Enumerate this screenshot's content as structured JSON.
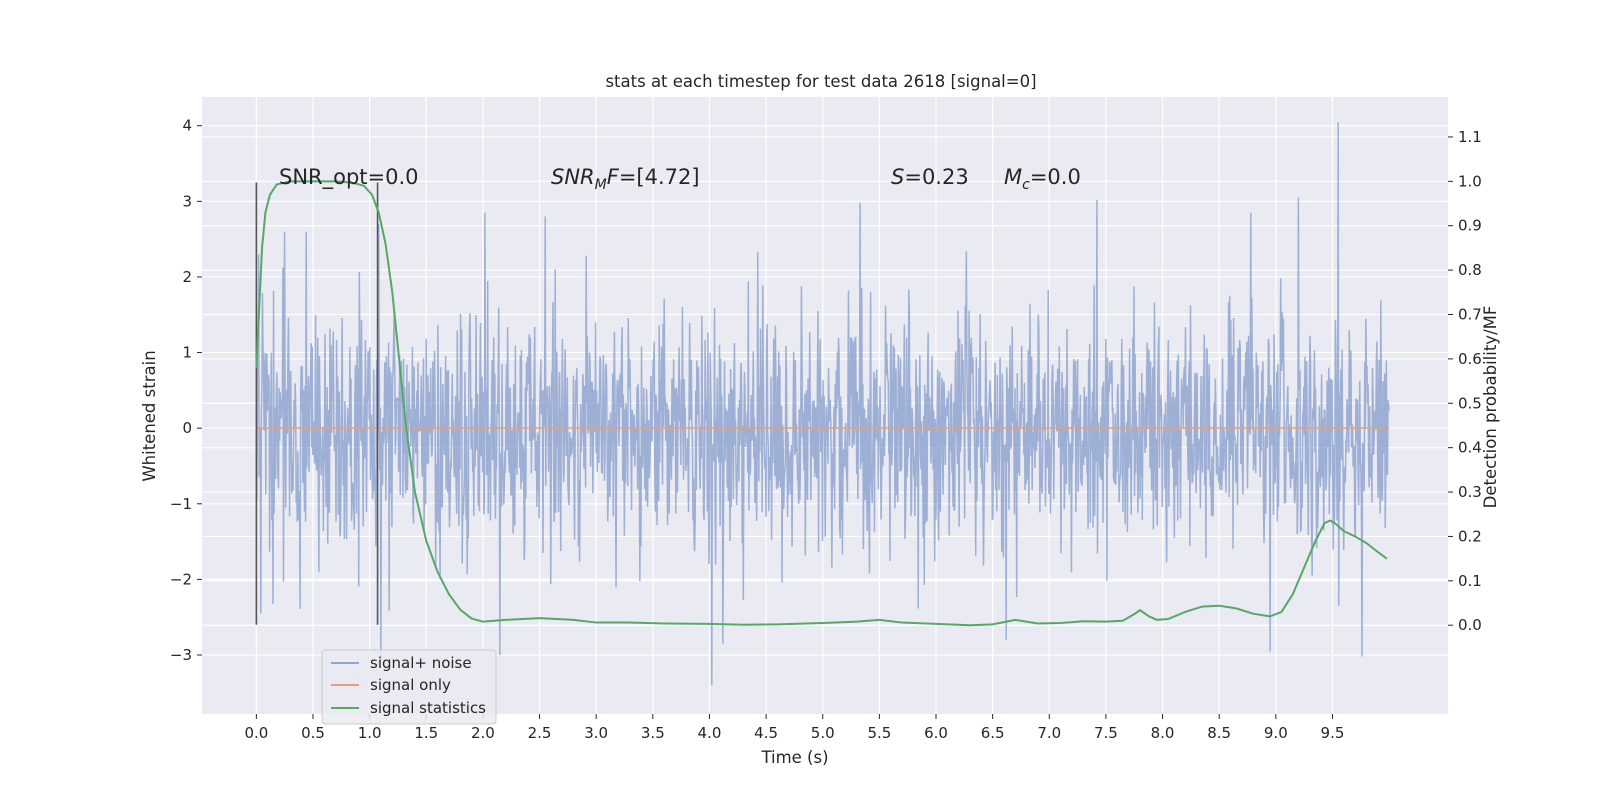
{
  "chart_data": {
    "type": "line",
    "title": "stats at each timestep for test data 2618 [signal=0]",
    "xlabel": "Time (s)",
    "ylabel_left": "Whitened strain",
    "ylabel_right": "Detection probability/MF",
    "xlim": [
      -0.48,
      10.52
    ],
    "ylim_left": [
      -3.78,
      4.38
    ],
    "ylim_right": [
      -0.2,
      1.19
    ],
    "x_ticks": [
      0.0,
      0.5,
      1.0,
      1.5,
      2.0,
      2.5,
      3.0,
      3.5,
      4.0,
      4.5,
      5.0,
      5.5,
      6.0,
      6.5,
      7.0,
      7.5,
      8.0,
      8.5,
      9.0,
      9.5
    ],
    "x_tick_labels": [
      "0.0",
      "0.5",
      "1.0",
      "1.5",
      "2.0",
      "2.5",
      "3.0",
      "3.5",
      "4.0",
      "4.5",
      "5.0",
      "5.5",
      "6.0",
      "6.5",
      "7.0",
      "7.5",
      "8.0",
      "8.5",
      "9.0",
      "9.5"
    ],
    "y_ticks_left": [
      -3,
      -2,
      -1,
      0,
      1,
      2,
      3,
      4
    ],
    "y_tick_labels_left": [
      "−3",
      "−2",
      "−1",
      "0",
      "1",
      "2",
      "3",
      "4"
    ],
    "y_ticks_right": [
      0.0,
      0.1,
      0.2,
      0.3,
      0.4,
      0.5,
      0.6,
      0.7,
      0.8,
      0.9,
      1.0,
      1.1
    ],
    "y_tick_labels_right": [
      "0.0",
      "0.1",
      "0.2",
      "0.3",
      "0.4",
      "0.5",
      "0.6",
      "0.7",
      "0.8",
      "0.9",
      "1.0",
      "1.1"
    ],
    "grid": true,
    "legend_position": "lower-left",
    "annotations": {
      "snr_opt": "SNR_opt=0.0",
      "snr_mf_symbol": "SNR",
      "snr_mf_sub": "M",
      "snr_mf_rest_italic": "F",
      "snr_mf_value": "=[4.72]",
      "s_symbol": "S",
      "s_value": "=0.23",
      "mc_symbol": "M",
      "mc_sub": "c",
      "mc_value": "=0.0"
    },
    "vlines": [
      0.0,
      1.07
    ],
    "vline_range_left": [
      -2.6,
      3.25
    ],
    "series": [
      {
        "name": "signal+ noise",
        "axis": "left",
        "color": "#8fa5cf",
        "x_range": [
          0.0,
          10.0
        ],
        "n_samples": 2048,
        "noise_std": 0.78,
        "notable_peaks": [
          [
            0.02,
            2.3
          ],
          [
            0.04,
            -2.45
          ],
          [
            0.25,
            2.6
          ],
          [
            1.08,
            2.7
          ],
          [
            1.1,
            -3.05
          ],
          [
            2.02,
            2.85
          ],
          [
            2.15,
            -3.0
          ],
          [
            2.55,
            2.8
          ],
          [
            4.02,
            -3.4
          ],
          [
            4.12,
            -2.85
          ],
          [
            5.33,
            2.98
          ],
          [
            6.62,
            -2.8
          ],
          [
            7.42,
            3.02
          ],
          [
            8.78,
            2.85
          ],
          [
            8.95,
            -2.95
          ],
          [
            9.2,
            3.05
          ],
          [
            9.55,
            4.05
          ],
          [
            9.76,
            -3.02
          ]
        ]
      },
      {
        "name": "signal only",
        "axis": "left",
        "color": "#e0a080",
        "x": [
          0.0,
          10.0
        ],
        "y": [
          0.0,
          0.0
        ]
      },
      {
        "name": "signal statistics",
        "axis": "right",
        "color": "#55a868",
        "x": [
          0.0,
          0.05,
          0.08,
          0.12,
          0.18,
          0.3,
          0.5,
          0.7,
          0.85,
          0.95,
          1.02,
          1.08,
          1.14,
          1.2,
          1.26,
          1.32,
          1.4,
          1.5,
          1.6,
          1.7,
          1.8,
          1.9,
          2.0,
          2.2,
          2.5,
          2.8,
          3.0,
          3.3,
          3.6,
          4.0,
          4.3,
          4.6,
          5.0,
          5.3,
          5.5,
          5.7,
          6.0,
          6.3,
          6.5,
          6.7,
          6.9,
          7.1,
          7.3,
          7.5,
          7.65,
          7.75,
          7.8,
          7.88,
          7.95,
          8.05,
          8.2,
          8.35,
          8.5,
          8.65,
          8.8,
          8.95,
          9.05,
          9.15,
          9.25,
          9.35,
          9.43,
          9.48,
          9.53,
          9.6,
          9.7,
          9.8,
          9.9,
          9.98
        ],
        "y": [
          0.58,
          0.85,
          0.93,
          0.97,
          0.993,
          1.0,
          1.0,
          1.0,
          0.997,
          0.99,
          0.97,
          0.93,
          0.86,
          0.75,
          0.6,
          0.45,
          0.3,
          0.19,
          0.12,
          0.07,
          0.035,
          0.015,
          0.008,
          0.012,
          0.016,
          0.012,
          0.006,
          0.006,
          0.004,
          0.003,
          0.001,
          0.002,
          0.005,
          0.008,
          0.012,
          0.006,
          0.003,
          0.0,
          0.002,
          0.012,
          0.004,
          0.005,
          0.009,
          0.008,
          0.01,
          0.025,
          0.034,
          0.02,
          0.012,
          0.014,
          0.03,
          0.042,
          0.044,
          0.038,
          0.026,
          0.02,
          0.03,
          0.07,
          0.13,
          0.19,
          0.23,
          0.236,
          0.228,
          0.212,
          0.2,
          0.185,
          0.165,
          0.15
        ]
      }
    ]
  }
}
